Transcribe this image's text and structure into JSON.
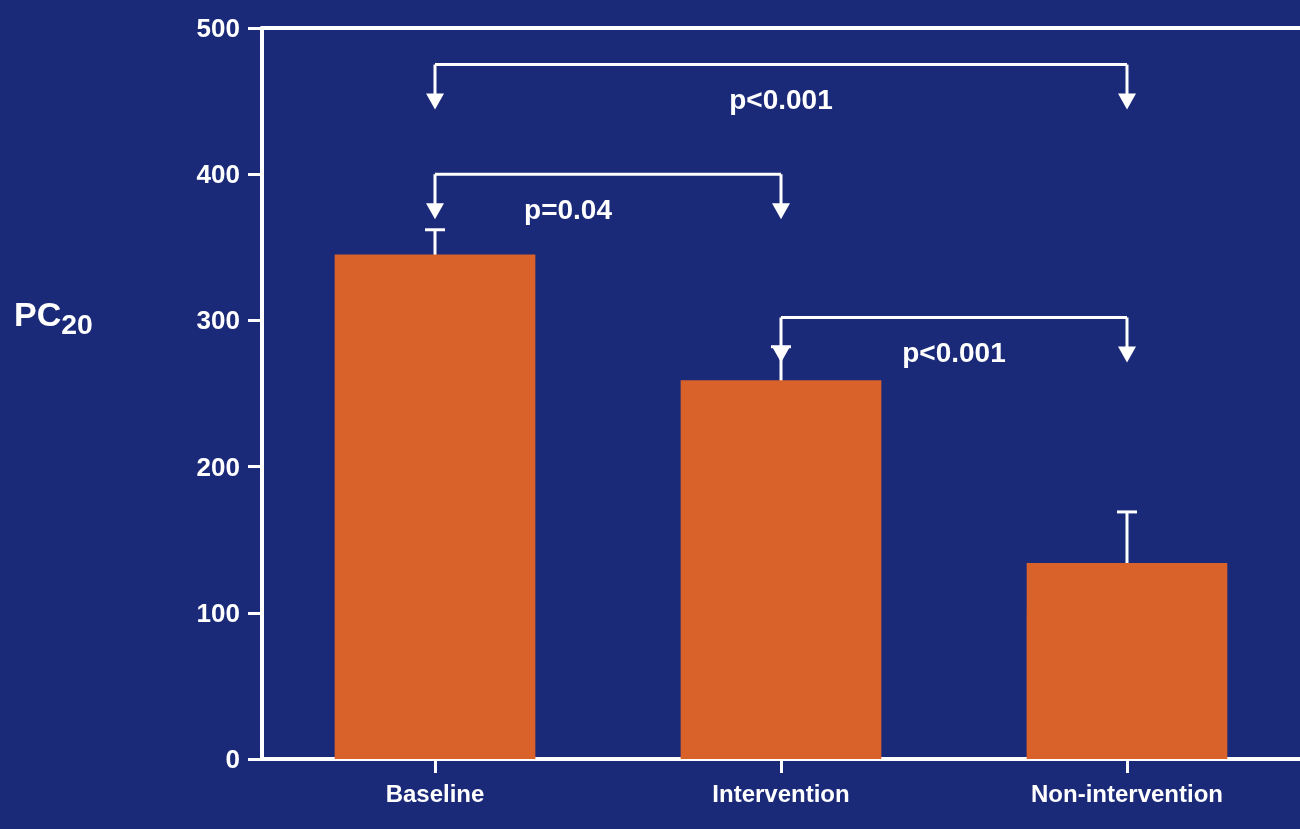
{
  "chart_data": {
    "type": "bar",
    "ylabel": "PC$_{20}$",
    "categories": [
      "Baseline",
      "Intervention",
      "Non-intervention"
    ],
    "values": [
      345,
      259,
      134
    ],
    "errors": [
      17,
      23,
      35
    ],
    "color": "#d9622b",
    "ylim": [
      0,
      500
    ],
    "yticks": [
      0,
      100,
      200,
      300,
      400,
      500
    ],
    "grid": false,
    "annotations": [
      "p<0.001",
      "p=0.04",
      "p<0.001"
    ]
  }
}
